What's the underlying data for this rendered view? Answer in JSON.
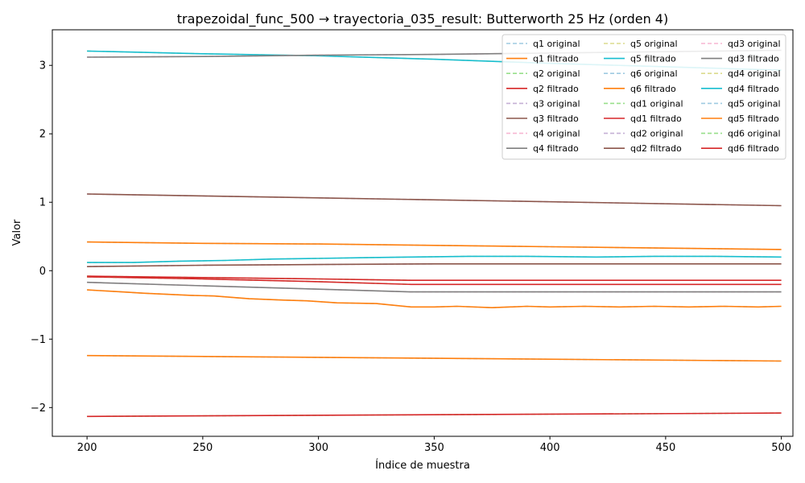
{
  "chart_data": {
    "type": "line",
    "title": "trapezoidal_func_500 → trayectoria_035_result: Butterworth 25 Hz (orden 4)",
    "xlabel": "Índice de muestra",
    "ylabel": "Valor",
    "xlim": [
      185,
      505
    ],
    "ylim": [
      -2.42,
      3.52
    ],
    "xticks": [
      200,
      250,
      300,
      350,
      400,
      450,
      500
    ],
    "xtick_labels": [
      "200",
      "250",
      "300",
      "350",
      "400",
      "450",
      "500"
    ],
    "yticks": [
      -2,
      -1,
      0,
      1,
      2,
      3
    ],
    "ytick_labels": [
      "−2",
      "−1",
      "0",
      "1",
      "2",
      "3"
    ],
    "grid": false,
    "legend_placement": "top-right",
    "legend_columns": 3,
    "series": [
      {
        "name": "q1 original",
        "color": "#9ecae1",
        "dash": "dashed",
        "x": [
          200,
          500
        ],
        "y": [
          -1.24,
          -1.32
        ]
      },
      {
        "name": "q1 filtrado",
        "color": "#ff7f0e",
        "dash": "solid",
        "x": [
          200,
          500
        ],
        "y": [
          -1.24,
          -1.32
        ]
      },
      {
        "name": "q2 original",
        "color": "#98df8a",
        "dash": "dashed",
        "x": [
          200,
          500
        ],
        "y": [
          -2.13,
          -2.08
        ]
      },
      {
        "name": "q2 filtrado",
        "color": "#d62728",
        "dash": "solid",
        "x": [
          200,
          500
        ],
        "y": [
          -2.13,
          -2.08
        ]
      },
      {
        "name": "q3 original",
        "color": "#c5b0d5",
        "dash": "dashed",
        "x": [
          200,
          500
        ],
        "y": [
          1.12,
          0.95
        ]
      },
      {
        "name": "q3 filtrado",
        "color": "#8c564b",
        "dash": "solid",
        "x": [
          200,
          500
        ],
        "y": [
          1.12,
          0.95
        ]
      },
      {
        "name": "q4 original",
        "color": "#f7b6d2",
        "dash": "dashed",
        "x": [
          200,
          250,
          300,
          340,
          400,
          500
        ],
        "y": [
          -0.17,
          -0.22,
          -0.27,
          -0.31,
          -0.31,
          -0.31
        ]
      },
      {
        "name": "q4 filtrado",
        "color": "#7f7f7f",
        "dash": "solid",
        "x": [
          200,
          250,
          300,
          340,
          400,
          500
        ],
        "y": [
          -0.17,
          -0.22,
          -0.27,
          -0.31,
          -0.31,
          -0.31
        ]
      },
      {
        "name": "q5 original",
        "color": "#dbdb8d",
        "dash": "dashed",
        "x": [
          200,
          250,
          300,
          350,
          400,
          450,
          500
        ],
        "y": [
          3.21,
          3.17,
          3.14,
          3.09,
          3.03,
          2.98,
          2.93
        ]
      },
      {
        "name": "q5 filtrado",
        "color": "#17becf",
        "dash": "solid",
        "x": [
          200,
          250,
          300,
          350,
          400,
          450,
          500
        ],
        "y": [
          3.21,
          3.17,
          3.14,
          3.09,
          3.03,
          2.98,
          2.93
        ]
      },
      {
        "name": "q6 original",
        "color": "#9ecae1",
        "dash": "dashed",
        "x": [
          200,
          250,
          300,
          350,
          400,
          450,
          500
        ],
        "y": [
          0.42,
          0.4,
          0.39,
          0.37,
          0.35,
          0.33,
          0.31
        ]
      },
      {
        "name": "q6 filtrado",
        "color": "#ff7f0e",
        "dash": "solid",
        "x": [
          200,
          250,
          300,
          350,
          400,
          450,
          500
        ],
        "y": [
          0.42,
          0.4,
          0.39,
          0.37,
          0.35,
          0.33,
          0.31
        ]
      },
      {
        "name": "qd1 original",
        "color": "#98df8a",
        "dash": "dashed",
        "x": [
          200,
          250,
          300,
          340,
          380,
          420,
          460,
          500
        ],
        "y": [
          -0.09,
          -0.12,
          -0.16,
          -0.2,
          -0.2,
          -0.2,
          -0.2,
          -0.2
        ]
      },
      {
        "name": "qd1 filtrado",
        "color": "#d62728",
        "dash": "solid",
        "x": [
          200,
          250,
          300,
          340,
          380,
          420,
          460,
          500
        ],
        "y": [
          -0.09,
          -0.12,
          -0.16,
          -0.2,
          -0.2,
          -0.2,
          -0.2,
          -0.2
        ]
      },
      {
        "name": "qd2 original",
        "color": "#c5b0d5",
        "dash": "dashed",
        "x": [
          200,
          250,
          300,
          350,
          400,
          450,
          500
        ],
        "y": [
          0.06,
          0.08,
          0.09,
          0.1,
          0.1,
          0.1,
          0.1
        ]
      },
      {
        "name": "qd2 filtrado",
        "color": "#8c564b",
        "dash": "solid",
        "x": [
          200,
          250,
          300,
          350,
          400,
          450,
          500
        ],
        "y": [
          0.06,
          0.08,
          0.09,
          0.1,
          0.1,
          0.1,
          0.1
        ]
      },
      {
        "name": "qd3 original",
        "color": "#f7b6d2",
        "dash": "dashed",
        "x": [
          200,
          250,
          300,
          350,
          400,
          450,
          500
        ],
        "y": [
          3.12,
          3.13,
          3.15,
          3.16,
          3.18,
          3.2,
          3.22
        ]
      },
      {
        "name": "qd3 filtrado",
        "color": "#7f7f7f",
        "dash": "solid",
        "x": [
          200,
          250,
          300,
          350,
          400,
          450,
          500
        ],
        "y": [
          3.12,
          3.13,
          3.15,
          3.16,
          3.18,
          3.2,
          3.22
        ]
      },
      {
        "name": "qd4 original",
        "color": "#dbdb8d",
        "dash": "dashed",
        "x": [
          200,
          220,
          240,
          260,
          280,
          300,
          320,
          340,
          365,
          390,
          420,
          445,
          470,
          500
        ],
        "y": [
          0.12,
          0.12,
          0.14,
          0.15,
          0.17,
          0.18,
          0.19,
          0.2,
          0.21,
          0.21,
          0.2,
          0.21,
          0.21,
          0.2
        ]
      },
      {
        "name": "qd4 filtrado",
        "color": "#17becf",
        "dash": "solid",
        "x": [
          200,
          220,
          240,
          260,
          280,
          300,
          320,
          340,
          365,
          390,
          420,
          445,
          470,
          500
        ],
        "y": [
          0.12,
          0.12,
          0.14,
          0.15,
          0.17,
          0.18,
          0.19,
          0.2,
          0.21,
          0.21,
          0.2,
          0.21,
          0.21,
          0.2
        ]
      },
      {
        "name": "qd5 original",
        "color": "#9ecae1",
        "dash": "dashed",
        "x": [
          200,
          215,
          225,
          245,
          255,
          270,
          285,
          295,
          308,
          325,
          340,
          350,
          360,
          375,
          390,
          400,
          415,
          430,
          445,
          460,
          475,
          490,
          500
        ],
        "y": [
          -0.28,
          -0.31,
          -0.33,
          -0.36,
          -0.37,
          -0.41,
          -0.43,
          -0.44,
          -0.47,
          -0.48,
          -0.53,
          -0.53,
          -0.52,
          -0.54,
          -0.52,
          -0.53,
          -0.52,
          -0.53,
          -0.52,
          -0.53,
          -0.52,
          -0.53,
          -0.52
        ]
      },
      {
        "name": "qd5 filtrado",
        "color": "#ff7f0e",
        "dash": "solid",
        "x": [
          200,
          215,
          225,
          245,
          255,
          270,
          285,
          295,
          308,
          325,
          340,
          350,
          360,
          375,
          390,
          400,
          415,
          430,
          445,
          460,
          475,
          490,
          500
        ],
        "y": [
          -0.28,
          -0.31,
          -0.33,
          -0.36,
          -0.37,
          -0.41,
          -0.43,
          -0.44,
          -0.47,
          -0.48,
          -0.53,
          -0.53,
          -0.52,
          -0.54,
          -0.52,
          -0.53,
          -0.52,
          -0.53,
          -0.52,
          -0.53,
          -0.52,
          -0.53,
          -0.52
        ]
      },
      {
        "name": "qd6 original",
        "color": "#98df8a",
        "dash": "dashed",
        "x": [
          200,
          250,
          300,
          340,
          380,
          420,
          460,
          500
        ],
        "y": [
          -0.08,
          -0.1,
          -0.12,
          -0.14,
          -0.14,
          -0.14,
          -0.14,
          -0.14
        ]
      },
      {
        "name": "qd6 filtrado",
        "color": "#d62728",
        "dash": "solid",
        "x": [
          200,
          250,
          300,
          340,
          380,
          420,
          460,
          500
        ],
        "y": [
          -0.08,
          -0.1,
          -0.12,
          -0.14,
          -0.14,
          -0.14,
          -0.14,
          -0.14
        ]
      }
    ]
  }
}
